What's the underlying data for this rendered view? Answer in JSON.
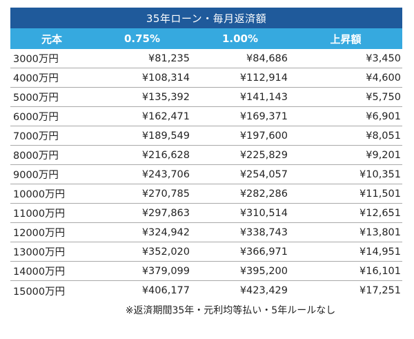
{
  "table": {
    "title": "35年ローン・毎月返済額",
    "headers": [
      "元本",
      "0.75%",
      "1.00%",
      "上昇額"
    ],
    "rows": [
      [
        "3000万円",
        "¥81,235",
        "¥84,686",
        "¥3,450"
      ],
      [
        "4000万円",
        "¥108,314",
        "¥112,914",
        "¥4,600"
      ],
      [
        "5000万円",
        "¥135,392",
        "¥141,143",
        "¥5,750"
      ],
      [
        "6000万円",
        "¥162,471",
        "¥169,371",
        "¥6,901"
      ],
      [
        "7000万円",
        "¥189,549",
        "¥197,600",
        "¥8,051"
      ],
      [
        "8000万円",
        "¥216,628",
        "¥225,829",
        "¥9,201"
      ],
      [
        "9000万円",
        "¥243,706",
        "¥254,057",
        "¥10,351"
      ],
      [
        "10000万円",
        "¥270,785",
        "¥282,286",
        "¥11,501"
      ],
      [
        "11000万円",
        "¥297,863",
        "¥310,514",
        "¥12,651"
      ],
      [
        "12000万円",
        "¥324,942",
        "¥338,743",
        "¥13,801"
      ],
      [
        "13000万円",
        "¥352,020",
        "¥366,971",
        "¥14,951"
      ],
      [
        "14000万円",
        "¥379,099",
        "¥395,200",
        "¥16,101"
      ],
      [
        "15000万円",
        "¥406,177",
        "¥423,429",
        "¥17,251"
      ]
    ],
    "footnote": "※返済期間35年・元利均等払い・5年ルールなし"
  },
  "colors": {
    "title_bg": "#1f5a9b",
    "header_bg": "#36a9df",
    "row_divider": "#a8a8a8"
  }
}
